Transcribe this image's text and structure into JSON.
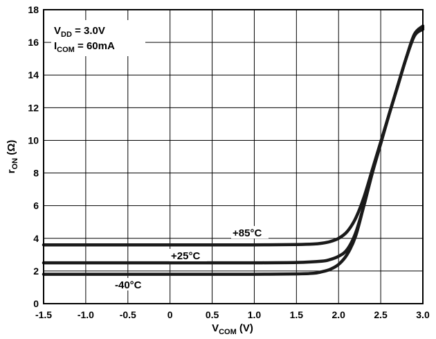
{
  "chart_data": {
    "type": "line",
    "title": "",
    "xlabel": {
      "main": "V",
      "sub": "COM",
      "unit": " (V)"
    },
    "ylabel": {
      "main": "r",
      "sub": "ON",
      "unit": " (Ω)"
    },
    "xlim": [
      -1.5,
      3.0
    ],
    "ylim": [
      0,
      18
    ],
    "xticks": [
      "-1.5",
      "-1.0",
      "-0.5",
      "0",
      "0.5",
      "1.0",
      "1.5",
      "2.0",
      "2.5",
      "3.0"
    ],
    "yticks": [
      "0",
      "2",
      "4",
      "6",
      "8",
      "10",
      "12",
      "14",
      "16",
      "18"
    ],
    "grid": true,
    "conditions": [
      {
        "main": "V",
        "sub": "DD",
        "rest": " = 3.0V"
      },
      {
        "main": "I",
        "sub": "COM",
        "rest": " = 60mA"
      }
    ],
    "series": [
      {
        "name": "+85°C",
        "x": [
          -1.5,
          -1.0,
          -0.5,
          0.0,
          0.5,
          1.0,
          1.5,
          1.7,
          1.8,
          1.9,
          2.0,
          2.1,
          2.2,
          2.3,
          2.4,
          2.5,
          2.6,
          2.7,
          2.8,
          2.9,
          3.0
        ],
        "y": [
          3.6,
          3.6,
          3.6,
          3.6,
          3.6,
          3.6,
          3.62,
          3.65,
          3.7,
          3.8,
          4.0,
          4.4,
          5.2,
          6.5,
          8.2,
          9.9,
          11.6,
          13.3,
          15.0,
          16.5,
          17.0
        ]
      },
      {
        "name": "+25°C",
        "x": [
          -1.5,
          -1.0,
          -0.5,
          0.0,
          0.5,
          1.0,
          1.5,
          1.8,
          1.9,
          2.0,
          2.1,
          2.2,
          2.3,
          2.4,
          2.5,
          2.6,
          2.7,
          2.8,
          2.9,
          3.0
        ],
        "y": [
          2.5,
          2.5,
          2.5,
          2.5,
          2.5,
          2.5,
          2.52,
          2.6,
          2.7,
          2.9,
          3.3,
          4.3,
          6.0,
          8.0,
          9.8,
          11.6,
          13.3,
          15.0,
          16.4,
          16.9
        ]
      },
      {
        "name": "-40°C",
        "x": [
          -1.5,
          -1.0,
          -0.5,
          0.0,
          0.5,
          1.0,
          1.5,
          1.7,
          1.8,
          1.9,
          2.0,
          2.1,
          2.2,
          2.3,
          2.4,
          2.5,
          2.6,
          2.7,
          2.8,
          2.9,
          3.0
        ],
        "y": [
          1.8,
          1.8,
          1.8,
          1.8,
          1.8,
          1.8,
          1.82,
          1.86,
          1.95,
          2.1,
          2.4,
          3.0,
          4.1,
          6.0,
          8.0,
          9.8,
          11.6,
          13.3,
          15.0,
          16.4,
          16.8
        ]
      }
    ]
  }
}
